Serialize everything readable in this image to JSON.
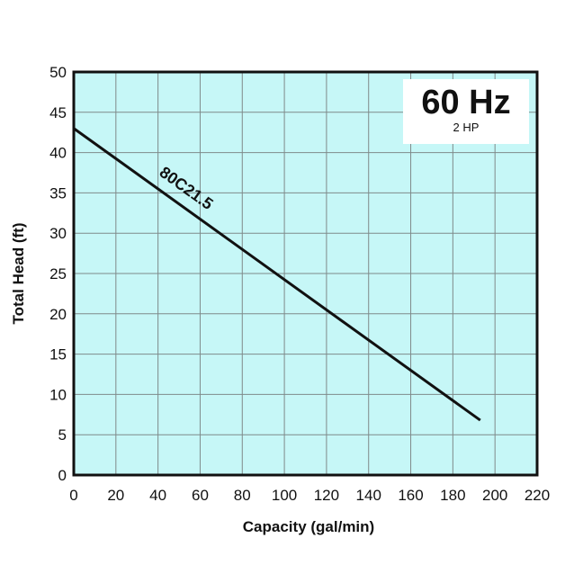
{
  "chart_data": {
    "type": "line",
    "frequency_label": "60 Hz",
    "power_label": "2 HP",
    "xlabel": "Capacity (gal/min)",
    "ylabel": "Total Head (ft)",
    "xlim": [
      0,
      220
    ],
    "ylim": [
      0,
      50
    ],
    "x_ticks": [
      0,
      20,
      40,
      60,
      80,
      100,
      120,
      140,
      160,
      180,
      200,
      220
    ],
    "y_ticks": [
      0,
      5,
      10,
      15,
      20,
      25,
      30,
      35,
      40,
      45,
      50
    ],
    "grid": true,
    "colors": {
      "plot_background": "#c6f7f7",
      "grid": "#7f8a8a",
      "line": "#111111"
    },
    "series": [
      {
        "name": "80C21.5",
        "x": [
          0,
          193
        ],
        "y": [
          43,
          6.8
        ]
      }
    ]
  }
}
